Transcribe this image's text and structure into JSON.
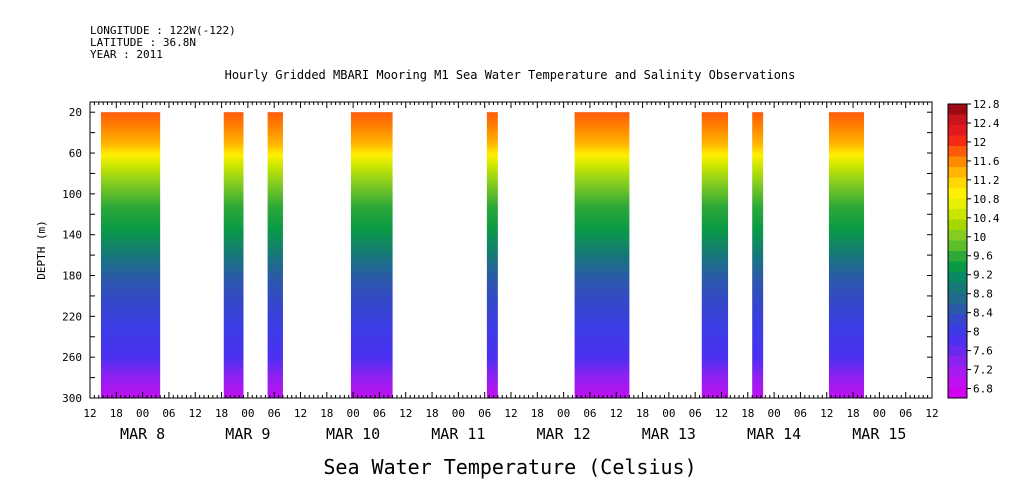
{
  "header": {
    "longitude": "LONGITUDE : 122W(-122)",
    "latitude": "LATITUDE : 36.8N",
    "year": "YEAR : 2011"
  },
  "chart_data": {
    "type": "heatmap",
    "title": "Hourly Gridded MBARI Mooring M1 Sea Water Temperature and Salinity Observations",
    "xlabel": "Sea Water Temperature (Celsius)",
    "ylabel": "DEPTH (m)",
    "x_hour_ticks": [
      "12",
      "18",
      "00",
      "06",
      "12",
      "18",
      "00",
      "06",
      "12",
      "18",
      "00",
      "06",
      "12",
      "18",
      "00",
      "06",
      "12",
      "18",
      "00",
      "06",
      "12",
      "18",
      "00",
      "06",
      "12",
      "18",
      "00",
      "06",
      "12",
      "18",
      "00",
      "06",
      "12"
    ],
    "x_day_labels": [
      {
        "label": "MAR  8",
        "hours_from_start": 12
      },
      {
        "label": "MAR  9",
        "hours_from_start": 36
      },
      {
        "label": "MAR 10",
        "hours_from_start": 60
      },
      {
        "label": "MAR 11",
        "hours_from_start": 84
      },
      {
        "label": "MAR 12",
        "hours_from_start": 108
      },
      {
        "label": "MAR 13",
        "hours_from_start": 132
      },
      {
        "label": "MAR 14",
        "hours_from_start": 156
      },
      {
        "label": "MAR 15",
        "hours_from_start": 180
      }
    ],
    "x_range_hours": [
      0,
      192
    ],
    "x_start": "2011-03-07 12:00",
    "y_ticks": [
      20,
      60,
      100,
      140,
      180,
      220,
      260,
      300
    ],
    "ylim": [
      300,
      10
    ],
    "colorbar": {
      "labels": [
        "12.8",
        "12.4",
        "12",
        "11.6",
        "11.2",
        "10.8",
        "10.4",
        "10",
        "9.6",
        "9.2",
        "8.8",
        "8.4",
        "8",
        "7.6",
        "7.2",
        "6.8"
      ],
      "colors": [
        "#9e0a14",
        "#c8141c",
        "#e31a1c",
        "#f52a14",
        "#ff5a0a",
        "#ff8a00",
        "#ffb400",
        "#ffd800",
        "#fff000",
        "#e8f000",
        "#c8e600",
        "#a6d800",
        "#84cc20",
        "#5cbf2a",
        "#2ea838",
        "#0a9a46",
        "#0a8a64",
        "#167878",
        "#206a8c",
        "#2a5aa8",
        "#3448c8",
        "#3c3ce6",
        "#4b30f0",
        "#6a2aee",
        "#8a22f0",
        "#a81af0",
        "#c010f0",
        "#d000f0"
      ]
    },
    "data_segments_hours": [
      [
        2.5,
        16
      ],
      [
        30.5,
        35
      ],
      [
        40.5,
        44
      ],
      [
        59.5,
        69
      ],
      [
        90.5,
        93
      ],
      [
        110.5,
        123
      ],
      [
        139.5,
        145.5
      ],
      [
        151,
        153.5
      ],
      [
        168.5,
        176.5
      ]
    ],
    "grid": false,
    "legend": "right colorbar"
  }
}
